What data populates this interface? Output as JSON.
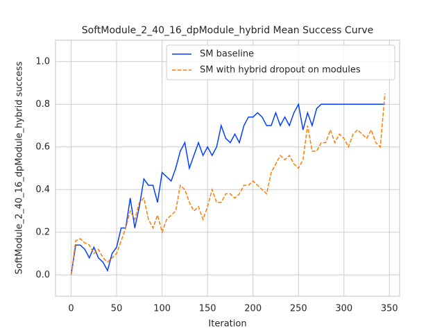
{
  "chart_data": {
    "type": "line",
    "title": "SoftModule_2_40_16_dpModule_hybrid Mean Success Curve",
    "xlabel": "Iteration",
    "ylabel": "SoftModule_2_40_16_dpModule_hybrid success",
    "x": [
      0,
      5,
      10,
      15,
      20,
      25,
      30,
      35,
      40,
      45,
      50,
      55,
      60,
      65,
      70,
      75,
      80,
      85,
      90,
      95,
      100,
      105,
      110,
      115,
      120,
      125,
      130,
      135,
      140,
      145,
      150,
      155,
      160,
      165,
      170,
      175,
      180,
      185,
      190,
      195,
      200,
      205,
      210,
      215,
      220,
      225,
      230,
      235,
      240,
      245,
      250,
      255,
      260,
      265,
      270,
      275,
      280,
      285,
      290,
      295,
      300,
      305,
      310,
      315,
      320,
      325,
      330,
      335,
      340,
      345
    ],
    "series": [
      {
        "name": "SM baseline",
        "color": "#023eff",
        "linestyle": "solid",
        "values": [
          0.0,
          0.14,
          0.14,
          0.12,
          0.08,
          0.13,
          0.08,
          0.06,
          0.02,
          0.1,
          0.13,
          0.22,
          0.22,
          0.36,
          0.22,
          0.32,
          0.45,
          0.42,
          0.42,
          0.34,
          0.48,
          0.46,
          0.44,
          0.5,
          0.58,
          0.62,
          0.5,
          0.56,
          0.62,
          0.56,
          0.6,
          0.56,
          0.6,
          0.7,
          0.64,
          0.62,
          0.66,
          0.62,
          0.7,
          0.74,
          0.74,
          0.76,
          0.74,
          0.7,
          0.7,
          0.76,
          0.7,
          0.74,
          0.7,
          0.76,
          0.8,
          0.68,
          0.76,
          0.7,
          0.78,
          0.8,
          0.8,
          0.8,
          0.8,
          0.8,
          0.8,
          0.8,
          0.8,
          0.8,
          0.8,
          0.8,
          0.8,
          0.8,
          0.8,
          0.8
        ]
      },
      {
        "name": "SM with hybrid dropout on modules",
        "color": "#ff7c00",
        "linestyle": "dashed",
        "values": [
          0.0,
          0.16,
          0.17,
          0.15,
          0.14,
          0.1,
          0.12,
          0.08,
          0.06,
          0.08,
          0.1,
          0.16,
          0.22,
          0.3,
          0.26,
          0.34,
          0.36,
          0.26,
          0.22,
          0.28,
          0.2,
          0.26,
          0.28,
          0.3,
          0.42,
          0.4,
          0.34,
          0.3,
          0.32,
          0.26,
          0.32,
          0.4,
          0.34,
          0.34,
          0.38,
          0.38,
          0.36,
          0.38,
          0.42,
          0.42,
          0.44,
          0.42,
          0.4,
          0.38,
          0.48,
          0.52,
          0.56,
          0.54,
          0.56,
          0.52,
          0.5,
          0.54,
          0.7,
          0.58,
          0.58,
          0.62,
          0.62,
          0.68,
          0.62,
          0.66,
          0.64,
          0.6,
          0.66,
          0.68,
          0.66,
          0.64,
          0.68,
          0.62,
          0.6,
          0.85
        ]
      }
    ],
    "xlim": [
      -17.2,
      361.2
    ],
    "ylim": [
      -0.1,
      1.1
    ],
    "xticks": [
      0,
      50,
      100,
      150,
      200,
      250,
      300,
      350
    ],
    "yticks": [
      {
        "value": 0,
        "label": "0.0"
      },
      0.2,
      0.4,
      0.6,
      0.8,
      {
        "value": 1,
        "label": "1.0"
      }
    ],
    "grid": true,
    "legend": "upper right"
  }
}
